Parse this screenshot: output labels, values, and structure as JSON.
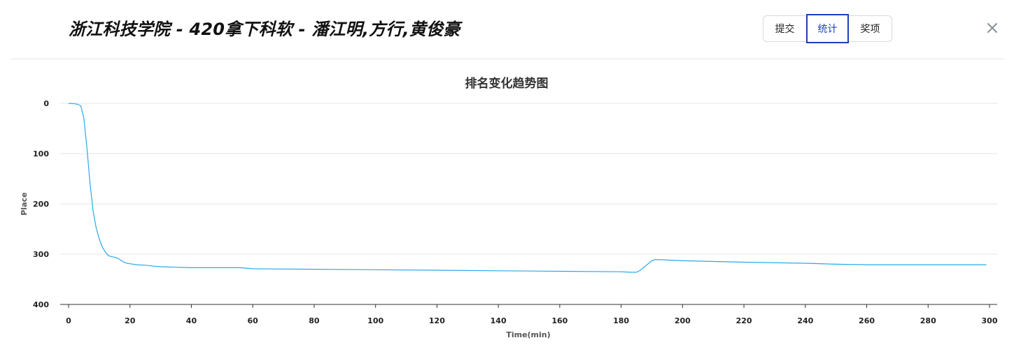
{
  "header": {
    "team_title": "浙江科技学院 - 420拿下科软 - 潘江明,方行,黄俊豪",
    "tabs": [
      {
        "label": "提交",
        "active": false
      },
      {
        "label": "统计",
        "active": true
      },
      {
        "label": "奖项",
        "active": false
      }
    ],
    "close_icon": "close-icon"
  },
  "colors": {
    "accent": "#1d3fb8",
    "line": "#2aa9ea"
  },
  "chart_data": {
    "type": "line",
    "title": "排名变化趋势图",
    "xlabel": "Time(min)",
    "ylabel": "Place",
    "xlim": [
      0,
      300
    ],
    "ylim": [
      0,
      400
    ],
    "y_inverted": true,
    "x_ticks": [
      0,
      20,
      40,
      60,
      80,
      100,
      120,
      140,
      160,
      180,
      200,
      220,
      240,
      260,
      280,
      300
    ],
    "y_ticks": [
      0,
      100,
      200,
      300,
      400
    ],
    "grid": "horizontal",
    "series": [
      {
        "x": [
          0,
          2,
          3,
          4,
          5,
          6,
          7,
          8,
          9,
          10,
          11,
          12,
          13,
          14,
          15,
          16,
          17,
          18,
          19,
          20,
          22,
          25,
          28,
          30,
          35,
          40,
          50,
          56,
          60,
          80,
          100,
          120,
          140,
          160,
          180,
          183,
          185,
          186,
          188,
          190,
          191,
          193,
          196,
          200,
          220,
          240,
          250,
          260,
          280,
          299
        ],
        "values": [
          0,
          1,
          2,
          5,
          30,
          90,
          160,
          215,
          248,
          270,
          286,
          296,
          303,
          305,
          306,
          308,
          312,
          316,
          318,
          319,
          321,
          322,
          324,
          325,
          326,
          327,
          327,
          327,
          329,
          330,
          331,
          332,
          333,
          334,
          335,
          336,
          336,
          333,
          323,
          313,
          311,
          311,
          312,
          313,
          316,
          318,
          320,
          321,
          321,
          321
        ]
      }
    ]
  }
}
